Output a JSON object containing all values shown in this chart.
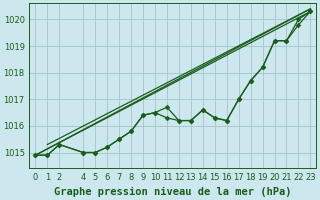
{
  "background_color": "#cce8ee",
  "grid_color": "#aac8cc",
  "line_color": "#1a5c1a",
  "title": "Graphe pression niveau de la mer (hPa)",
  "title_color": "#1a5c1a",
  "xlim": [
    -0.5,
    23.5
  ],
  "ylim": [
    1014.4,
    1020.6
  ],
  "yticks": [
    1015,
    1016,
    1017,
    1018,
    1019,
    1020
  ],
  "xticks": [
    0,
    1,
    2,
    4,
    5,
    6,
    7,
    8,
    9,
    10,
    11,
    12,
    13,
    14,
    15,
    16,
    17,
    18,
    19,
    20,
    21,
    22,
    23
  ],
  "series_with_markers": [
    [
      1014.9,
      1014.9,
      1015.3,
      null,
      1015.0,
      1015.0,
      1015.2,
      1015.5,
      1015.8,
      1016.4,
      1016.5,
      1016.3,
      1016.2,
      1016.2,
      1016.6,
      1016.3,
      1016.2,
      1017.0,
      1017.7,
      1018.2,
      1019.2,
      1019.2,
      1019.8,
      1020.3
    ],
    [
      1014.9,
      1014.9,
      1015.3,
      null,
      1015.0,
      1015.0,
      1015.2,
      1015.5,
      1015.8,
      1016.4,
      1016.5,
      1016.7,
      1016.2,
      1016.2,
      1016.6,
      1016.3,
      1016.2,
      1017.0,
      1017.7,
      1018.2,
      1019.2,
      1019.2,
      1020.0,
      1020.3
    ]
  ],
  "straight_lines": [
    [
      [
        0,
        1014.9
      ],
      [
        23,
        1020.3
      ]
    ],
    [
      [
        0,
        1014.9
      ],
      [
        23,
        1020.4
      ]
    ],
    [
      [
        1,
        1015.3
      ],
      [
        23,
        1020.4
      ]
    ]
  ],
  "marker": "D",
  "marker_size": 2.5,
  "linewidth": 0.9,
  "tick_fontsize": 6,
  "title_fontsize": 7.5
}
